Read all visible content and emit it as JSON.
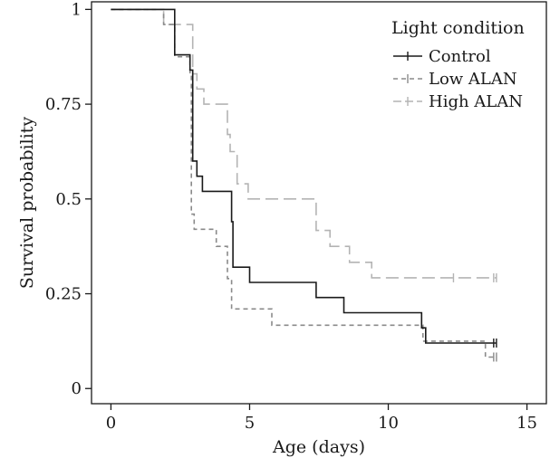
{
  "chart_data": {
    "type": "line",
    "subtype": "step (Kaplan-Meier survival curves)",
    "xlabel": "Age (days)",
    "ylabel": "Survival probability",
    "xlim": [
      -0.7,
      15.7
    ],
    "ylim": [
      -0.04,
      1.02
    ],
    "xticks": [
      0,
      5,
      10,
      15
    ],
    "xtick_labels": [
      "0",
      "5",
      "10",
      "15"
    ],
    "yticks": [
      0,
      0.25,
      0.5,
      0.75,
      1
    ],
    "ytick_labels": [
      "0",
      "0.25",
      "0.5",
      "0.75",
      "1"
    ],
    "grid": false,
    "legend": {
      "title": "Light condition",
      "position": "top-right",
      "entries": [
        "Control",
        "Low ALAN",
        "High ALAN"
      ]
    },
    "series": [
      {
        "name": "Control",
        "color": "#1a1a1a",
        "dash": "solid",
        "steps": [
          [
            0,
            1
          ],
          [
            2.3,
            0.88
          ],
          [
            2.85,
            0.84
          ],
          [
            2.95,
            0.6
          ],
          [
            3.1,
            0.56
          ],
          [
            3.3,
            0.52
          ],
          [
            4.35,
            0.44
          ],
          [
            4.4,
            0.32
          ],
          [
            5.0,
            0.28
          ],
          [
            7.4,
            0.24
          ],
          [
            8.4,
            0.2
          ],
          [
            11.2,
            0.16
          ],
          [
            11.35,
            0.12
          ],
          [
            13.9,
            0.12
          ]
        ],
        "censored": [
          [
            13.8,
            0.12
          ],
          [
            13.9,
            0.12
          ]
        ]
      },
      {
        "name": "Low ALAN",
        "color": "#8a8a8a",
        "dash": "short",
        "steps": [
          [
            0,
            1
          ],
          [
            1.9,
            0.96
          ],
          [
            2.3,
            0.875
          ],
          [
            2.85,
            0.83
          ],
          [
            2.9,
            0.46
          ],
          [
            3.0,
            0.42
          ],
          [
            3.8,
            0.375
          ],
          [
            4.2,
            0.29
          ],
          [
            4.35,
            0.21
          ],
          [
            5.8,
            0.167
          ],
          [
            11.25,
            0.125
          ],
          [
            13.5,
            0.083
          ],
          [
            13.9,
            0.083
          ]
        ],
        "censored": [
          [
            13.8,
            0.083
          ],
          [
            13.9,
            0.083
          ]
        ]
      },
      {
        "name": "High ALAN",
        "color": "#b4b4b4",
        "dash": "long",
        "steps": [
          [
            0,
            1
          ],
          [
            1.9,
            0.96
          ],
          [
            2.95,
            0.83
          ],
          [
            3.1,
            0.79
          ],
          [
            3.35,
            0.75
          ],
          [
            4.2,
            0.67
          ],
          [
            4.3,
            0.625
          ],
          [
            4.55,
            0.54
          ],
          [
            4.95,
            0.5
          ],
          [
            7.4,
            0.417
          ],
          [
            7.9,
            0.375
          ],
          [
            8.6,
            0.333
          ],
          [
            9.4,
            0.292
          ],
          [
            13.9,
            0.292
          ]
        ],
        "censored": [
          [
            12.35,
            0.292
          ],
          [
            13.8,
            0.292
          ],
          [
            13.9,
            0.292
          ]
        ]
      }
    ]
  }
}
